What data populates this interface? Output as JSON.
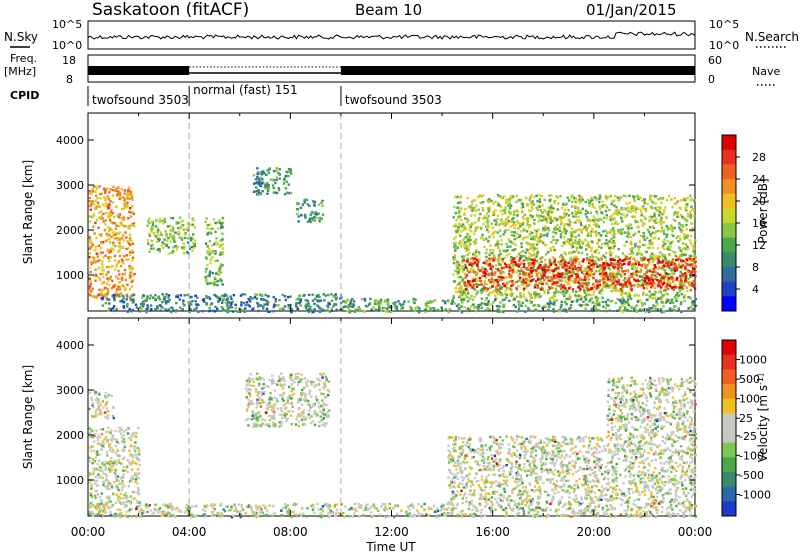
{
  "header": {
    "station": "Saskatoon (fitACF)",
    "beam": "Beam 10",
    "date": "01/Jan/2015"
  },
  "status_panels": {
    "nsky_label": "N.Sky",
    "nsky_ticks": [
      "10^5",
      "10^0"
    ],
    "nsearch_label": "N.Search",
    "nsearch_ticks": [
      "10^5",
      "10^0"
    ],
    "freq_label": "Freq.",
    "freq_unit": "[MHz]",
    "freq_ticks": [
      "18",
      "8"
    ],
    "nave_label": "Nave",
    "nave_ticks": [
      "60",
      "0"
    ],
    "cpid_label": "CPID",
    "cpid_segments": [
      {
        "label": "twofsound 3503",
        "start_hour": 0,
        "end_hour": 4
      },
      {
        "label": "normal (fast) 151",
        "start_hour": 4,
        "end_hour": 10
      },
      {
        "label": "twofsound 3503",
        "start_hour": 10,
        "end_hour": 24
      }
    ]
  },
  "chart_data": [
    {
      "type": "heatmap",
      "name": "power",
      "ylabel": "Slant Range [km]",
      "xlabel": "Time UT",
      "xlim": [
        0,
        24
      ],
      "ylim": [
        200,
        4600
      ],
      "y_ticks": [
        "1000",
        "2000",
        "3000",
        "4000"
      ],
      "x_ticks": [
        "00:00",
        "04:00",
        "08:00",
        "12:00",
        "16:00",
        "20:00",
        "00:00"
      ],
      "colorbar": {
        "label": "Power [dB]",
        "ticks": [
          "4",
          "8",
          "12",
          "16",
          "20",
          "24",
          "28"
        ],
        "colors": [
          "#0000ff",
          "#2040c8",
          "#2f6e9a",
          "#3a8a6c",
          "#4aa84a",
          "#88c840",
          "#c8d82a",
          "#f0c020",
          "#f09020",
          "#f06020",
          "#e83020",
          "#e00000"
        ]
      },
      "scatter_regions": [
        {
          "h0": 0.0,
          "h1": 1.8,
          "r0": 500,
          "r1": 3000,
          "level": 0.7
        },
        {
          "h0": 2.3,
          "h1": 4.2,
          "r0": 1500,
          "r1": 2300,
          "level": 0.45
        },
        {
          "h0": 4.6,
          "h1": 5.3,
          "r0": 800,
          "r1": 2300,
          "level": 0.4
        },
        {
          "h0": 0.5,
          "h1": 10.0,
          "r0": 200,
          "r1": 600,
          "level": 0.25
        },
        {
          "h0": 6.5,
          "h1": 8.0,
          "r0": 2800,
          "r1": 3400,
          "level": 0.3
        },
        {
          "h0": 8.2,
          "h1": 9.3,
          "r0": 2200,
          "r1": 2700,
          "level": 0.3
        },
        {
          "h0": 14.4,
          "h1": 24.0,
          "r0": 500,
          "r1": 2800,
          "level": 0.5
        },
        {
          "h0": 14.8,
          "h1": 24.0,
          "r0": 700,
          "r1": 1400,
          "level": 0.9
        },
        {
          "h0": 10.0,
          "h1": 24.0,
          "r0": 200,
          "r1": 500,
          "level": 0.35
        }
      ]
    },
    {
      "type": "heatmap",
      "name": "velocity",
      "ylabel": "Slant Range [km]",
      "xlabel": "Time UT",
      "xlim": [
        0,
        24
      ],
      "ylim": [
        200,
        4600
      ],
      "y_ticks": [
        "1000",
        "2000",
        "3000",
        "4000"
      ],
      "x_ticks": [
        "00:00",
        "04:00",
        "08:00",
        "12:00",
        "16:00",
        "20:00",
        "00:00"
      ],
      "colorbar": {
        "label": "Velocity [m s^-1]",
        "ticks": [
          "1000",
          "500",
          "100",
          "25",
          "-25",
          "-100",
          "-500",
          "-1000"
        ],
        "colors": [
          "#1a3cc8",
          "#2a6aa8",
          "#3a8a6c",
          "#4aa84a",
          "#7cc850",
          "#c8c8c0",
          "#c8c8c0",
          "#f0c020",
          "#f09020",
          "#f06020",
          "#e83020",
          "#e00000"
        ]
      },
      "scatter_regions": [
        {
          "h0": 0.0,
          "h1": 2.0,
          "r0": 400,
          "r1": 2200,
          "level": 0.6
        },
        {
          "h0": 0.0,
          "h1": 1.0,
          "r0": 2400,
          "r1": 3000,
          "level": 0.4
        },
        {
          "h0": 6.2,
          "h1": 9.5,
          "r0": 2200,
          "r1": 3400,
          "level": 0.5
        },
        {
          "h0": 14.2,
          "h1": 24.0,
          "r0": 500,
          "r1": 2000,
          "level": 0.5
        },
        {
          "h0": 20.5,
          "h1": 24.0,
          "r0": 2000,
          "r1": 3300,
          "level": 0.8
        },
        {
          "h0": 0.0,
          "h1": 24.0,
          "r0": 200,
          "r1": 500,
          "level": 0.7
        }
      ]
    }
  ]
}
